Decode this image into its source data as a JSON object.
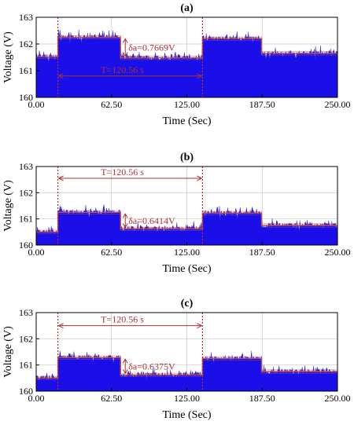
{
  "colors": {
    "fill": "#1a0fe8",
    "stroke": "#2f2fd6",
    "step": "#c0504d",
    "annotation": "#b03030",
    "grid": "#c8c8c8"
  },
  "chart_data": [
    {
      "type": "area",
      "title": "(a)",
      "xlabel": "Time (Sec)",
      "ylabel": "Voltage (V)",
      "xlim": [
        0,
        250
      ],
      "ylim": [
        160,
        163
      ],
      "xticks": [
        "0.00",
        "62.50",
        "125.00",
        "187.50",
        "250.00"
      ],
      "yticks": [
        "160",
        "161",
        "162",
        "163"
      ],
      "grid": true,
      "levels": [
        {
          "x_start": 0,
          "x_end": 18,
          "voltage": 161.52
        },
        {
          "x_start": 18,
          "x_end": 70,
          "voltage": 162.25
        },
        {
          "x_start": 70,
          "x_end": 138,
          "voltage": 161.48
        },
        {
          "x_start": 138,
          "x_end": 187,
          "voltage": 162.2
        },
        {
          "x_start": 187,
          "x_end": 250,
          "voltage": 161.65
        }
      ],
      "markers": [
        18,
        138
      ],
      "period_label": "T=120.56 s",
      "period_y": 160.8,
      "delta_label": "δa=0.7669V",
      "delta_x": 70
    },
    {
      "type": "area",
      "title": "(b)",
      "xlabel": "Time (Sec)",
      "ylabel": "Voltage (V)",
      "xlim": [
        0,
        250
      ],
      "ylim": [
        160,
        163
      ],
      "xticks": [
        "0.00",
        "62.50",
        "125.00",
        "187.50",
        "250.00"
      ],
      "yticks": [
        "160",
        "161",
        "162",
        "163"
      ],
      "grid": true,
      "levels": [
        {
          "x_start": 0,
          "x_end": 18,
          "voltage": 160.5
        },
        {
          "x_start": 18,
          "x_end": 70,
          "voltage": 161.25
        },
        {
          "x_start": 70,
          "x_end": 138,
          "voltage": 160.62
        },
        {
          "x_start": 138,
          "x_end": 187,
          "voltage": 161.22
        },
        {
          "x_start": 187,
          "x_end": 250,
          "voltage": 160.75
        }
      ],
      "markers": [
        18,
        138
      ],
      "period_label": "T=120.56 s",
      "period_y": 162.55,
      "delta_label": "δa=0.6414V",
      "delta_x": 70
    },
    {
      "type": "area",
      "title": "(c)",
      "xlabel": "Time (Sec)",
      "ylabel": "Voltage (V)",
      "xlim": [
        0,
        250
      ],
      "ylim": [
        160,
        163
      ],
      "xticks": [
        "0.00",
        "62.50",
        "125.00",
        "187.50",
        "250.00"
      ],
      "yticks": [
        "160",
        "161",
        "162",
        "163"
      ],
      "grid": true,
      "levels": [
        {
          "x_start": 0,
          "x_end": 18,
          "voltage": 160.5
        },
        {
          "x_start": 18,
          "x_end": 70,
          "voltage": 161.28
        },
        {
          "x_start": 70,
          "x_end": 138,
          "voltage": 160.62
        },
        {
          "x_start": 138,
          "x_end": 187,
          "voltage": 161.25
        },
        {
          "x_start": 187,
          "x_end": 250,
          "voltage": 160.75
        }
      ],
      "markers": [
        18,
        138
      ],
      "period_label": "T=120.56 s",
      "period_y": 162.5,
      "delta_label": "δa=0.6375V",
      "delta_x": 70
    }
  ]
}
